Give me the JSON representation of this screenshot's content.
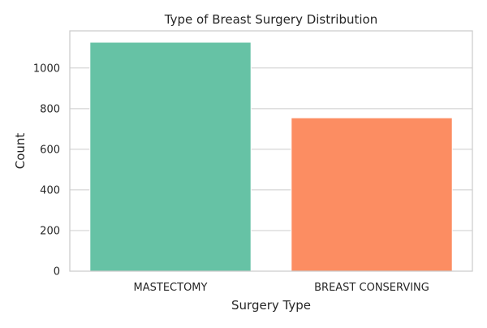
{
  "chart_data": {
    "type": "bar",
    "title": "Type of Breast Surgery Distribution",
    "xlabel": "Surgery Type",
    "ylabel": "Count",
    "categories": [
      "MASTECTOMY",
      "BREAST CONSERVING"
    ],
    "values": [
      1127,
      755
    ],
    "colors": [
      "#66c2a5",
      "#fc8d62"
    ],
    "ylim": [
      0,
      1183
    ],
    "yticks": [
      0,
      200,
      400,
      600,
      800,
      1000
    ],
    "grid": true,
    "legend": "none"
  }
}
